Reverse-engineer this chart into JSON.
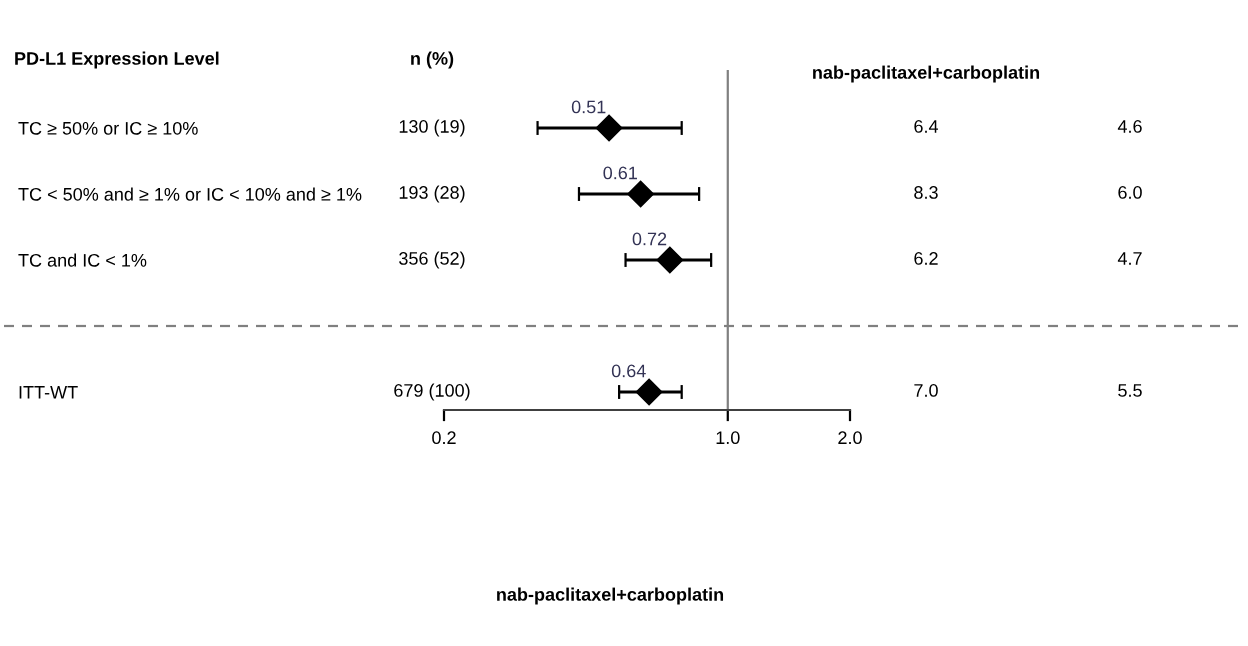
{
  "chart_data": {
    "type": "scatter",
    "orientation": "horizontal",
    "categories": [
      "TC ≥ 50% or IC ≥ 10%",
      "TC < 50% and ≥ 1% or IC < 10% and ≥ 1%",
      "TC and IC < 1%",
      null,
      "ITT-WT"
    ],
    "values": [
      0.51,
      0.61,
      0.72,
      null,
      0.64
    ],
    "errors": [
      [
        0.34,
        0.77
      ],
      [
        0.43,
        0.85
      ],
      [
        0.56,
        0.91
      ],
      null,
      [
        0.54,
        0.77
      ]
    ],
    "value_labels": [
      "0.51",
      "0.61",
      "0.72",
      null,
      "0.64"
    ],
    "color": "#000000",
    "marker": "diamond",
    "log": "x",
    "xlim": [
      0.2,
      2.0
    ],
    "xticks": [
      {
        "value": 0.2,
        "label": "0.2"
      },
      {
        "value": 1.0,
        "label": "1.0"
      },
      {
        "value": 2.0,
        "label": "2.0"
      }
    ],
    "ylabel": "PD-L1 Expression Level",
    "ref_lines": [
      {
        "axis": "x",
        "value": 1.0,
        "color": "#808080"
      }
    ],
    "annotations": [
      "n (%)",
      "nab-paclitaxel+carboplatin",
      "130 (19)",
      "6.4",
      "4.6",
      "193 (28)",
      "8.3",
      "6.0",
      "356 (52)",
      "6.2",
      "4.7",
      null,
      null,
      null,
      "679 (100)",
      "7.0",
      "5.5",
      "nab-paclitaxel+carboplatin"
    ],
    "grid": false
  }
}
